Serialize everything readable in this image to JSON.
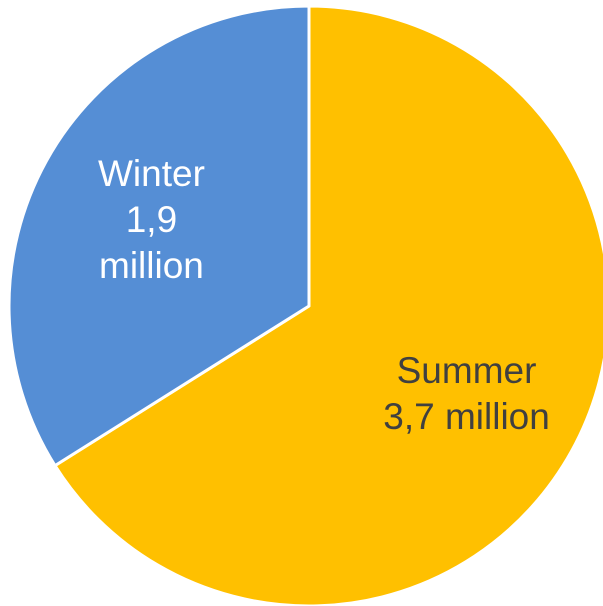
{
  "chart_data": {
    "type": "pie",
    "title": "",
    "slices": [
      {
        "category": "Summer",
        "value": 3.7,
        "label_lines": [
          "Summer",
          "3,7 million"
        ],
        "color": "#FFC000",
        "label_color": "#404040"
      },
      {
        "category": "Winter",
        "value": 1.9,
        "label_lines": [
          "Winter",
          "1,9",
          "million"
        ],
        "color": "#558ED5",
        "label_color": "#FFFFFF"
      }
    ],
    "unit": "million",
    "start_angle_deg": 0,
    "direction": "clockwise",
    "legend": "none",
    "slice_border_color": "#FFFFFF"
  }
}
